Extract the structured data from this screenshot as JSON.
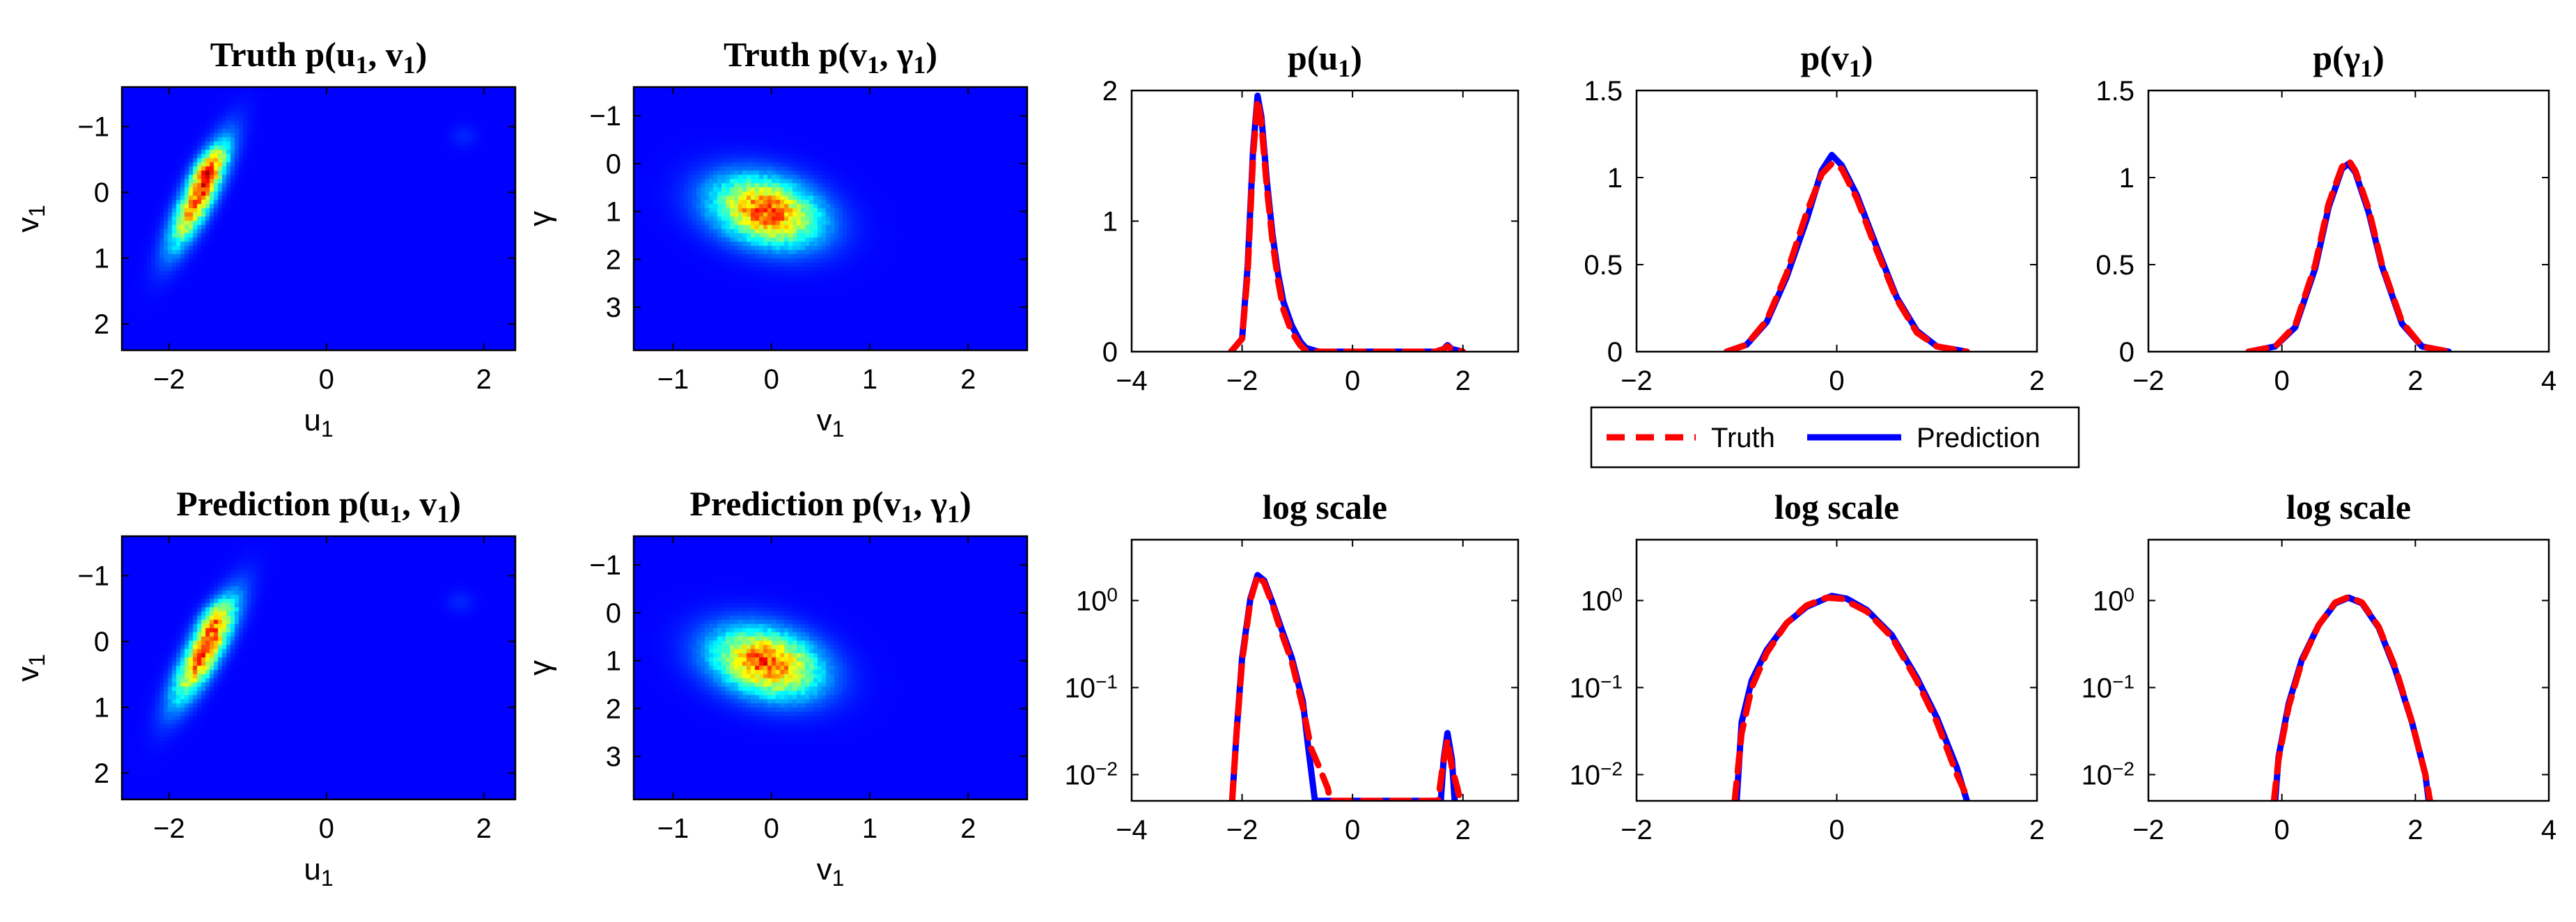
{
  "chart_data": [
    {
      "id": "h-truth-uv",
      "type": "heatmap",
      "title": "Truth p(u",
      "title_sub1": "1",
      "title_mid": ", v",
      "title_sub2": "1",
      "title_end": ")",
      "xlabel": "u",
      "xlabel_sub": "1",
      "ylabel": "v",
      "ylabel_sub": "1",
      "xlim": [
        -2.6,
        2.4
      ],
      "ylim": [
        -1.6,
        2.4
      ],
      "y_reversed": true,
      "xticks": [
        -2,
        0,
        2
      ],
      "yticks": [
        -1,
        0,
        1,
        2
      ],
      "blobs": [
        {
          "cx": -1.62,
          "cy": 0.05,
          "sx": 0.13,
          "sy": 0.55,
          "rot": -68,
          "amp": 1.0
        },
        {
          "cx": -1.5,
          "cy": -0.4,
          "sx": 0.1,
          "sy": 0.2,
          "rot": -60,
          "amp": 0.35
        },
        {
          "cx": 1.75,
          "cy": -0.85,
          "sx": 0.12,
          "sy": 0.12,
          "rot": 0,
          "amp": 0.05
        }
      ]
    },
    {
      "id": "h-truth-vg",
      "type": "heatmap",
      "title": "Truth p(v",
      "title_sub1": "1",
      "title_mid": ", γ",
      "title_sub2": "1",
      "title_end": ")",
      "xlabel": "v",
      "xlabel_sub": "1",
      "ylabel": "γ",
      "ylabel_sub": "",
      "xlim": [
        -1.4,
        2.6
      ],
      "ylim": [
        -1.6,
        3.9
      ],
      "y_reversed": true,
      "xticks": [
        -1,
        0,
        1,
        2
      ],
      "yticks": [
        -1,
        0,
        1,
        2,
        3
      ],
      "blobs": [
        {
          "cx": -0.05,
          "cy": 1.0,
          "sx": 0.5,
          "sy": 0.34,
          "rot": -22,
          "amp": 1.0
        }
      ]
    },
    {
      "id": "h-pred-uv",
      "type": "heatmap",
      "title": "Prediction p(u",
      "title_sub1": "1",
      "title_mid": ", v",
      "title_sub2": "1",
      "title_end": ")",
      "xlabel": "u",
      "xlabel_sub": "1",
      "ylabel": "v",
      "ylabel_sub": "1",
      "xlim": [
        -2.6,
        2.4
      ],
      "ylim": [
        -1.6,
        2.4
      ],
      "y_reversed": true,
      "xticks": [
        -2,
        0,
        2
      ],
      "yticks": [
        -1,
        0,
        1,
        2
      ],
      "blobs": [
        {
          "cx": -1.55,
          "cy": 0.15,
          "sx": 0.14,
          "sy": 0.55,
          "rot": -66,
          "amp": 1.0
        },
        {
          "cx": -1.45,
          "cy": -0.35,
          "sx": 0.1,
          "sy": 0.2,
          "rot": -60,
          "amp": 0.35
        },
        {
          "cx": 1.7,
          "cy": -0.6,
          "sx": 0.12,
          "sy": 0.12,
          "rot": 0,
          "amp": 0.05
        }
      ]
    },
    {
      "id": "h-pred-vg",
      "type": "heatmap",
      "title": "Prediction p(v",
      "title_sub1": "1",
      "title_mid": ", γ",
      "title_sub2": "1",
      "title_end": ")",
      "xlabel": "v",
      "xlabel_sub": "1",
      "ylabel": "γ",
      "ylabel_sub": "",
      "xlim": [
        -1.4,
        2.6
      ],
      "ylim": [
        -1.6,
        3.9
      ],
      "y_reversed": true,
      "xticks": [
        -1,
        0,
        1,
        2
      ],
      "yticks": [
        -1,
        0,
        1,
        2,
        3
      ],
      "blobs": [
        {
          "cx": -0.05,
          "cy": 1.05,
          "sx": 0.5,
          "sy": 0.34,
          "rot": -22,
          "amp": 1.0
        }
      ]
    },
    {
      "id": "l-pu",
      "type": "line",
      "title": "p(u",
      "title_sub1": "1",
      "title_end": ")",
      "xlim": [
        -4,
        3
      ],
      "ylim": [
        0,
        2
      ],
      "xticks": [
        -4,
        -2,
        0,
        2
      ],
      "yticks": [
        0,
        1,
        2
      ],
      "ytick_labels": [
        "0",
        "1",
        "2"
      ],
      "series": [
        {
          "name": "Truth",
          "x": [
            -2.2,
            -2.0,
            -1.9,
            -1.8,
            -1.72,
            -1.65,
            -1.55,
            -1.45,
            -1.35,
            -1.25,
            -1.1,
            -0.95,
            -0.85,
            -0.7,
            0.0,
            1.5,
            1.65,
            1.72,
            1.8,
            2.0
          ],
          "y": [
            0,
            0.1,
            0.6,
            1.5,
            1.93,
            1.75,
            1.25,
            0.85,
            0.55,
            0.32,
            0.15,
            0.05,
            0.01,
            0,
            0,
            0,
            0.02,
            0.04,
            0.02,
            0
          ]
        },
        {
          "name": "Prediction",
          "x": [
            -2.2,
            -2.0,
            -1.9,
            -1.8,
            -1.72,
            -1.65,
            -1.55,
            -1.45,
            -1.35,
            -1.25,
            -1.1,
            -0.95,
            -0.85,
            -0.7,
            -0.6,
            0.0,
            1.5,
            1.65,
            1.72,
            1.8,
            2.0
          ],
          "y": [
            0,
            0.1,
            0.65,
            1.55,
            1.96,
            1.8,
            1.3,
            0.9,
            0.6,
            0.38,
            0.2,
            0.08,
            0.03,
            0.01,
            0,
            0,
            0,
            0.02,
            0.05,
            0.02,
            0
          ]
        }
      ]
    },
    {
      "id": "l-pv",
      "type": "line",
      "title": "p(v",
      "title_sub1": "1",
      "title_end": ")",
      "xlim": [
        -2,
        2
      ],
      "ylim": [
        0,
        1.5
      ],
      "xticks": [
        -2,
        0,
        2
      ],
      "yticks": [
        0,
        0.5,
        1,
        1.5
      ],
      "ytick_labels": [
        "0",
        "0.5",
        "1",
        "1.5"
      ],
      "series": [
        {
          "name": "Truth",
          "x": [
            -1.1,
            -0.9,
            -0.7,
            -0.5,
            -0.3,
            -0.15,
            -0.05,
            0.05,
            0.2,
            0.4,
            0.6,
            0.8,
            1.0,
            1.3
          ],
          "y": [
            0,
            0.04,
            0.18,
            0.45,
            0.8,
            1.02,
            1.08,
            1.05,
            0.88,
            0.58,
            0.3,
            0.11,
            0.03,
            0
          ]
        },
        {
          "name": "Prediction",
          "x": [
            -1.1,
            -0.9,
            -0.7,
            -0.5,
            -0.3,
            -0.15,
            -0.05,
            0.05,
            0.2,
            0.4,
            0.6,
            0.8,
            1.0,
            1.3
          ],
          "y": [
            0,
            0.04,
            0.17,
            0.43,
            0.76,
            1.04,
            1.13,
            1.07,
            0.9,
            0.6,
            0.31,
            0.12,
            0.03,
            0
          ]
        }
      ]
    },
    {
      "id": "l-pg",
      "type": "line",
      "title": "p(γ",
      "title_sub1": "1",
      "title_end": ")",
      "xlim": [
        -2,
        4
      ],
      "ylim": [
        0,
        1.5
      ],
      "xticks": [
        -2,
        0,
        2,
        4
      ],
      "yticks": [
        0,
        0.5,
        1,
        1.5
      ],
      "ytick_labels": [
        "0",
        "0.5",
        "1",
        "1.5"
      ],
      "series": [
        {
          "name": "Truth",
          "x": [
            -0.5,
            -0.1,
            0.2,
            0.5,
            0.7,
            0.9,
            1.0,
            1.1,
            1.3,
            1.5,
            1.8,
            2.1,
            2.5
          ],
          "y": [
            0,
            0.03,
            0.15,
            0.5,
            0.85,
            1.06,
            1.1,
            1.04,
            0.82,
            0.5,
            0.17,
            0.03,
            0
          ]
        },
        {
          "name": "Prediction",
          "x": [
            -0.5,
            -0.1,
            0.2,
            0.5,
            0.7,
            0.9,
            1.0,
            1.1,
            1.3,
            1.5,
            1.8,
            2.1,
            2.5
          ],
          "y": [
            0,
            0.03,
            0.14,
            0.48,
            0.83,
            1.05,
            1.08,
            1.03,
            0.8,
            0.49,
            0.16,
            0.03,
            0
          ]
        }
      ]
    },
    {
      "id": "g-pu",
      "type": "line",
      "yscale": "log",
      "title": "log scale",
      "xlim": [
        -4,
        3
      ],
      "ylim": [
        0.005,
        5
      ],
      "xticks": [
        -4,
        -2,
        0,
        2
      ],
      "yticks": [
        0.01,
        0.1,
        1
      ],
      "series": [
        {
          "name": "Truth",
          "x": [
            -2.18,
            -2.1,
            -2.0,
            -1.85,
            -1.72,
            -1.6,
            -1.45,
            -1.3,
            -1.1,
            -0.9,
            -0.75,
            -0.6,
            -0.45,
            -0.4,
            1.55,
            1.63,
            1.72,
            1.8,
            1.9,
            1.95
          ],
          "y": [
            0.005,
            0.03,
            0.2,
            1.0,
            1.93,
            1.6,
            0.9,
            0.45,
            0.2,
            0.06,
            0.02,
            0.012,
            0.007,
            0.005,
            0.005,
            0.012,
            0.025,
            0.012,
            0.007,
            0.005
          ]
        },
        {
          "name": "Prediction",
          "x": [
            -2.18,
            -2.1,
            -2.0,
            -1.85,
            -1.72,
            -1.6,
            -1.45,
            -1.3,
            -1.1,
            -0.9,
            -0.8,
            -0.68,
            1.6,
            1.65,
            1.72,
            1.8,
            1.85
          ],
          "y": [
            0.005,
            0.03,
            0.22,
            1.05,
            1.96,
            1.7,
            0.95,
            0.5,
            0.22,
            0.07,
            0.02,
            0.005,
            0.005,
            0.015,
            0.03,
            0.015,
            0.005
          ]
        }
      ]
    },
    {
      "id": "g-pv",
      "type": "line",
      "yscale": "log",
      "title": "log scale",
      "xlim": [
        -2,
        2
      ],
      "ylim": [
        0.005,
        5
      ],
      "xticks": [
        -2,
        0,
        2
      ],
      "yticks": [
        0.01,
        0.1,
        1
      ],
      "series": [
        {
          "name": "Truth",
          "x": [
            -1.02,
            -0.95,
            -0.85,
            -0.7,
            -0.5,
            -0.3,
            -0.1,
            0.05,
            0.3,
            0.55,
            0.8,
            1.0,
            1.2,
            1.32
          ],
          "y": [
            0.005,
            0.03,
            0.1,
            0.25,
            0.55,
            0.88,
            1.08,
            1.05,
            0.75,
            0.38,
            0.12,
            0.04,
            0.01,
            0.005
          ]
        },
        {
          "name": "Prediction",
          "x": [
            -1.0,
            -0.95,
            -0.85,
            -0.7,
            -0.5,
            -0.3,
            -0.05,
            0.1,
            0.3,
            0.55,
            0.8,
            1.0,
            1.2,
            1.3
          ],
          "y": [
            0.005,
            0.04,
            0.12,
            0.27,
            0.55,
            0.85,
            1.13,
            1.05,
            0.78,
            0.4,
            0.13,
            0.045,
            0.012,
            0.005
          ]
        }
      ]
    },
    {
      "id": "g-pg",
      "type": "line",
      "yscale": "log",
      "title": "log scale",
      "xlim": [
        -2,
        4
      ],
      "ylim": [
        0.005,
        5
      ],
      "xticks": [
        -2,
        0,
        2,
        4
      ],
      "yticks": [
        0.01,
        0.1,
        1
      ],
      "series": [
        {
          "name": "Truth",
          "x": [
            -0.12,
            -0.05,
            0.1,
            0.3,
            0.55,
            0.8,
            1.0,
            1.2,
            1.45,
            1.7,
            1.95,
            2.15,
            2.22
          ],
          "y": [
            0.005,
            0.015,
            0.06,
            0.2,
            0.52,
            0.95,
            1.1,
            0.95,
            0.5,
            0.17,
            0.04,
            0.01,
            0.005
          ]
        },
        {
          "name": "Prediction",
          "x": [
            -0.1,
            -0.05,
            0.1,
            0.3,
            0.55,
            0.8,
            1.0,
            1.2,
            1.45,
            1.7,
            1.95,
            2.15,
            2.2
          ],
          "y": [
            0.005,
            0.016,
            0.065,
            0.21,
            0.52,
            0.93,
            1.08,
            0.93,
            0.49,
            0.16,
            0.04,
            0.01,
            0.005
          ]
        }
      ]
    }
  ],
  "legend": {
    "truth_label": "Truth",
    "prediction_label": "Prediction",
    "truth_color": "#ff0000",
    "prediction_color": "#0000ff"
  },
  "colors": {
    "heatmap_background": "#00008f"
  }
}
